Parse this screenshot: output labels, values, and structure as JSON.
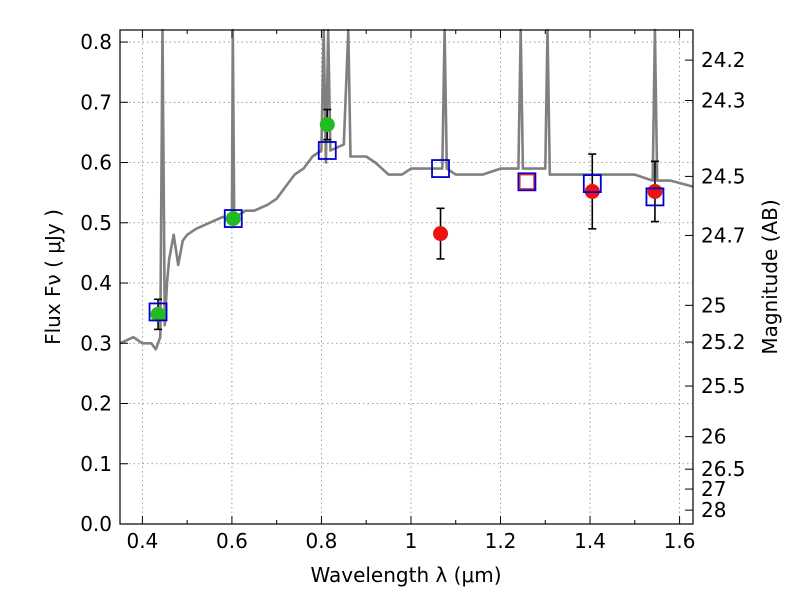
{
  "chart_data": {
    "type": "scatter",
    "xlabel": "Wavelength  λ (μm)",
    "ylabel": "Flux  Fν  ( μJy )",
    "y2label": "Magnitude (AB)",
    "xlim": [
      0.35,
      1.63
    ],
    "ylim": [
      0.0,
      0.82
    ],
    "grid": true,
    "x_ticks": [
      0.4,
      0.6,
      0.8,
      1.0,
      1.2,
      1.4,
      1.6
    ],
    "x_tick_labels": [
      "0.4",
      "0.6",
      "0.8",
      "1",
      "1.2",
      "1.4",
      "1.6"
    ],
    "y_ticks": [
      0.0,
      0.1,
      0.2,
      0.3,
      0.4,
      0.5,
      0.6,
      0.7,
      0.8
    ],
    "y_tick_labels": [
      "0.0",
      "0.1",
      "0.2",
      "0.3",
      "0.4",
      "0.5",
      "0.6",
      "0.7",
      "0.8"
    ],
    "mag_ticks": [
      {
        "label": "24.2",
        "flux": 0.77
      },
      {
        "label": "24.3",
        "flux": 0.703
      },
      {
        "label": "24.5",
        "flux": 0.577
      },
      {
        "label": "24.7",
        "flux": 0.479
      },
      {
        "label": "25",
        "flux": 0.363
      },
      {
        "label": "25.2",
        "flux": 0.302
      },
      {
        "label": "25.5",
        "flux": 0.229
      },
      {
        "label": "26",
        "flux": 0.145
      },
      {
        "label": "26.5",
        "flux": 0.091
      },
      {
        "label": "27",
        "flux": 0.058
      },
      {
        "label": "28",
        "flux": 0.023
      }
    ],
    "colors": {
      "spectrum": "#808080",
      "model_box": "#0000cc",
      "optical_points": "#22bb22",
      "nir_points": "#ee1111",
      "red_box": "#ee1111",
      "errorbar": "#000000",
      "grid": "#888888"
    },
    "series": [
      {
        "type": "line",
        "x": [
          0.35,
          0.38,
          0.4,
          0.42,
          0.43,
          0.44,
          0.445,
          0.45,
          0.455,
          0.46,
          0.47,
          0.48,
          0.49,
          0.5,
          0.52,
          0.55,
          0.58,
          0.6,
          0.602,
          0.605,
          0.61,
          0.63,
          0.65,
          0.68,
          0.7,
          0.72,
          0.74,
          0.76,
          0.78,
          0.8,
          0.805,
          0.81,
          0.815,
          0.82,
          0.85,
          0.86,
          0.865,
          0.88,
          0.9,
          0.92,
          0.95,
          0.98,
          1.0,
          1.02,
          1.05,
          1.07,
          1.075,
          1.08,
          1.1,
          1.13,
          1.16,
          1.2,
          1.24,
          1.245,
          1.25,
          1.28,
          1.3,
          1.305,
          1.31,
          1.35,
          1.4,
          1.45,
          1.5,
          1.54,
          1.545,
          1.55,
          1.58,
          1.63
        ],
        "y": [
          0.3,
          0.31,
          0.3,
          0.3,
          0.29,
          0.31,
          0.82,
          0.33,
          0.4,
          0.44,
          0.48,
          0.43,
          0.47,
          0.48,
          0.49,
          0.5,
          0.51,
          0.5,
          0.82,
          0.51,
          0.51,
          0.52,
          0.52,
          0.53,
          0.54,
          0.56,
          0.58,
          0.59,
          0.61,
          0.62,
          0.82,
          0.6,
          0.82,
          0.62,
          0.63,
          0.82,
          0.61,
          0.61,
          0.61,
          0.6,
          0.58,
          0.58,
          0.59,
          0.59,
          0.59,
          0.59,
          0.82,
          0.59,
          0.58,
          0.58,
          0.58,
          0.59,
          0.59,
          0.82,
          0.59,
          0.59,
          0.59,
          0.82,
          0.58,
          0.58,
          0.58,
          0.58,
          0.58,
          0.57,
          0.82,
          0.57,
          0.57,
          0.56
        ]
      },
      {
        "type": "scatter",
        "marker": "open-square",
        "color": "blue",
        "x": [
          0.435,
          0.603,
          0.813,
          1.066,
          1.259,
          1.405,
          1.545
        ],
        "y": [
          0.352,
          0.507,
          0.62,
          0.59,
          0.568,
          0.565,
          0.543
        ]
      },
      {
        "type": "scatter",
        "marker": "filled-circle",
        "color": "green",
        "x": [
          0.435,
          0.603,
          0.813
        ],
        "y": [
          0.348,
          0.507,
          0.663
        ],
        "yerr": [
          0.025,
          0.0,
          0.025
        ]
      },
      {
        "type": "scatter",
        "marker": "filled-circle",
        "color": "red",
        "x": [
          1.066,
          1.405,
          1.545
        ],
        "y": [
          0.482,
          0.552,
          0.552
        ],
        "yerr": [
          0.042,
          0.062,
          0.05
        ]
      },
      {
        "type": "scatter",
        "marker": "open-square",
        "color": "red",
        "x": [
          1.259
        ],
        "y": [
          0.568
        ]
      }
    ]
  }
}
